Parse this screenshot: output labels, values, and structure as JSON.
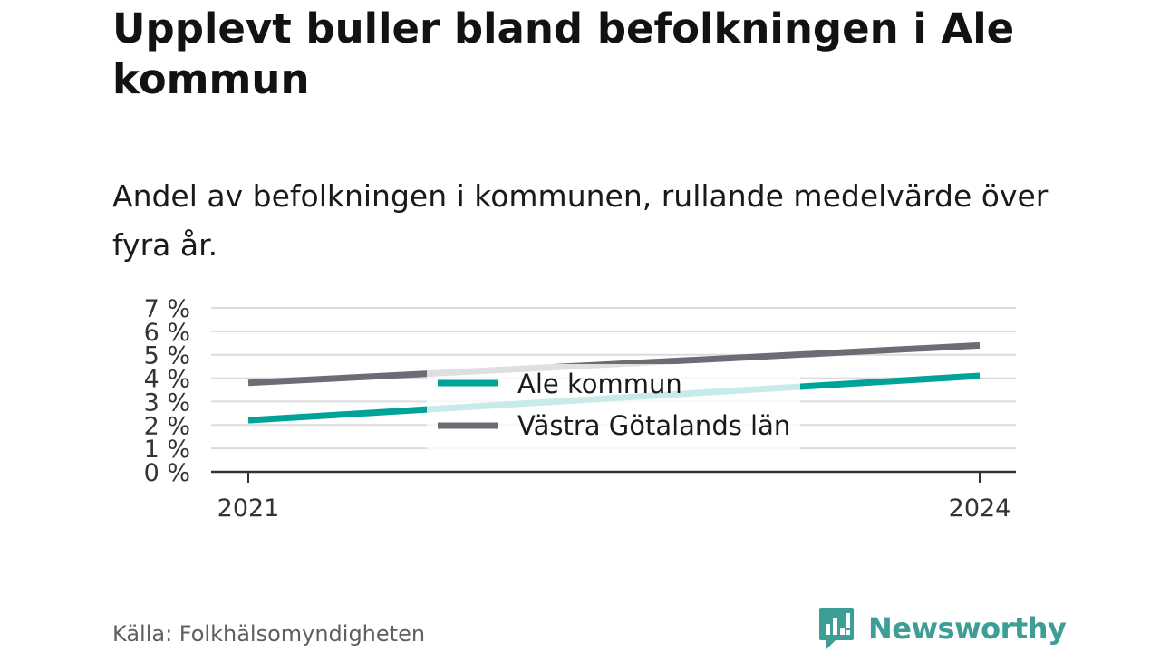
{
  "title": "Upplevt buller bland befolkningen i Ale kommun",
  "subtitle": "Andel av befolkningen i kommunen, rullande medelvärde över fyra år.",
  "source": "Källa: Folkhälsomyndigheten",
  "brand": {
    "name": "Newsworthy",
    "icon": "newsworthy-logo-icon",
    "color": "#3c9e95"
  },
  "chart_data": {
    "type": "line",
    "x": [
      "2021",
      "2024"
    ],
    "xticks": [
      "2021",
      "2024"
    ],
    "yticks": [
      "0 %",
      "1 %",
      "2 %",
      "3 %",
      "4 %",
      "5 %",
      "6 %",
      "7 %"
    ],
    "ylim": [
      0,
      7
    ],
    "grid": true,
    "legend_position": "center",
    "series": [
      {
        "name": "Ale kommun",
        "color": "#00a398",
        "values": [
          2.2,
          4.1
        ]
      },
      {
        "name": "Västra Götalands län",
        "color": "#6c6c74",
        "values": [
          3.8,
          5.4
        ]
      }
    ]
  }
}
